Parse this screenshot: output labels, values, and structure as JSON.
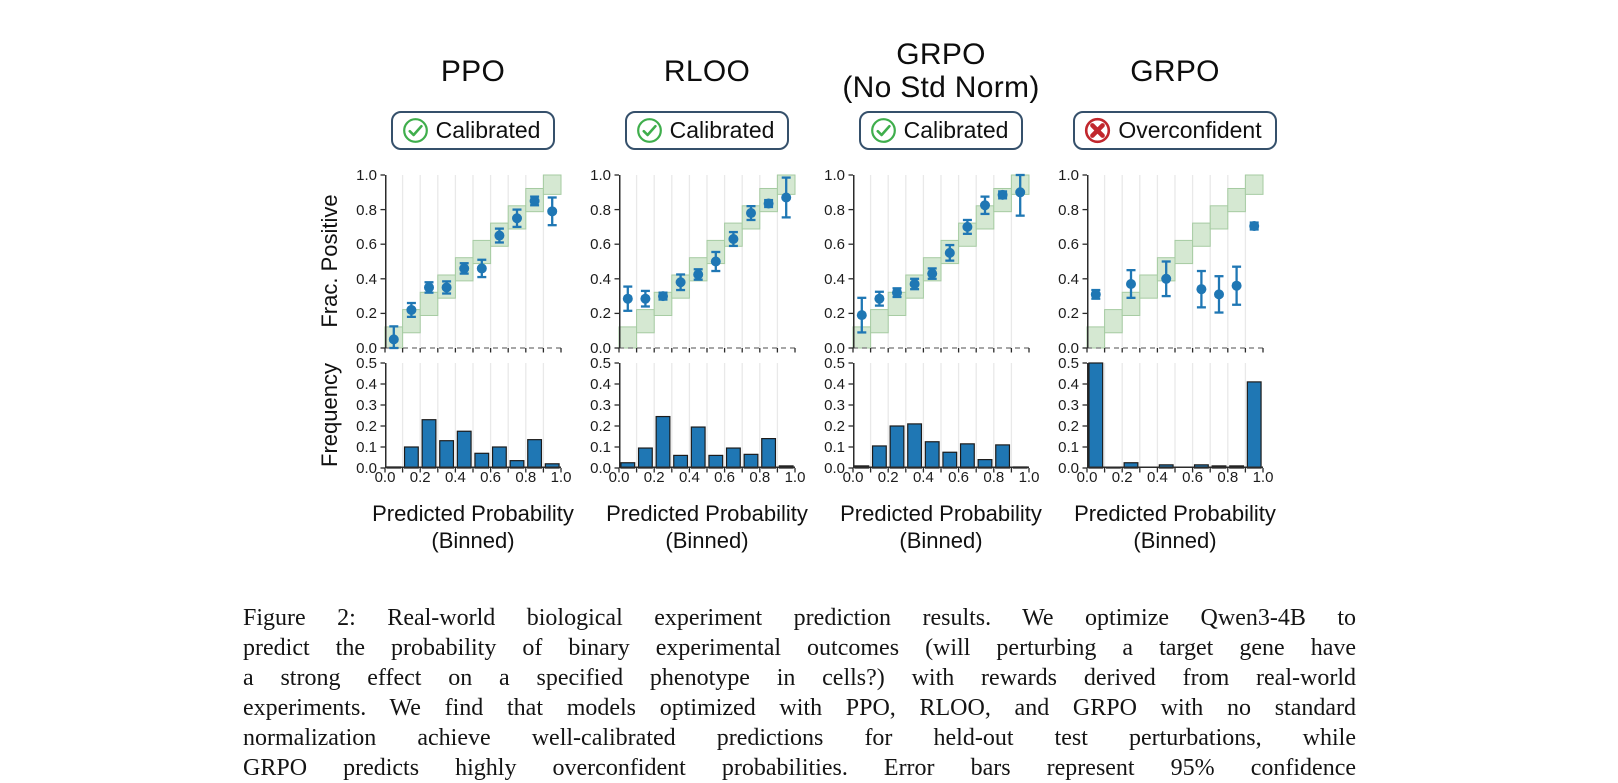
{
  "figure": {
    "panels": [
      {
        "title_lines": [
          "PPO"
        ],
        "badge": {
          "label": "Calibrated",
          "status": "calibrated"
        }
      },
      {
        "title_lines": [
          "RLOO"
        ],
        "badge": {
          "label": "Calibrated",
          "status": "calibrated"
        }
      },
      {
        "title_lines": [
          "GRPO",
          "(No Std Norm)"
        ],
        "badge": {
          "label": "Calibrated",
          "status": "calibrated"
        }
      },
      {
        "title_lines": [
          "GRPO"
        ],
        "badge": {
          "label": "Overconfident",
          "status": "overconfident"
        }
      }
    ],
    "axes": {
      "ylabel_top": "Frac. Positive",
      "ylabel_bottom": "Frequency",
      "xlabel_line1": "Predicted Probability",
      "xlabel_line2": "(Binned)",
      "cal_yticks": [
        0,
        0.2,
        0.4,
        0.6,
        0.8,
        1.0
      ],
      "hist_yticks": [
        0,
        0.1,
        0.2,
        0.3,
        0.4,
        0.5
      ],
      "xticks": [
        0,
        0.2,
        0.4,
        0.6,
        0.8,
        1.0
      ]
    },
    "colors": {
      "point_blue": "#1f77b4",
      "bar_blue": "#1f77b4",
      "bar_edge": "#1c1c1c",
      "band_fill": "#d5e8d2",
      "band_edge": "#a6cba2",
      "grid": "#e9e9e9",
      "spine": "#2b2b2b",
      "dashed_axis": "#8a8a8a",
      "badge_border": "#35506b",
      "check_green": "#3fae4c",
      "cross_red": "#c1272d",
      "text": "#111111"
    }
  },
  "chart_data": [
    {
      "type": "scatter",
      "title": "PPO calibration",
      "ylabel": "Frac. Positive",
      "xlabel": "Predicted Probability (Binned)",
      "xlim": [
        0,
        1
      ],
      "ylim": [
        0,
        1
      ],
      "band": "stepped diagonal band of ideal calibration per 0.1-wide bin",
      "x": [
        0.05,
        0.15,
        0.25,
        0.35,
        0.45,
        0.55,
        0.65,
        0.75,
        0.85,
        0.95
      ],
      "y": [
        0.05,
        0.22,
        0.35,
        0.35,
        0.46,
        0.46,
        0.65,
        0.75,
        0.85,
        0.79
      ],
      "yerr": [
        0.075,
        0.04,
        0.03,
        0.035,
        0.03,
        0.05,
        0.04,
        0.05,
        0.025,
        0.08
      ]
    },
    {
      "type": "bar",
      "title": "PPO prediction frequency",
      "ylabel": "Frequency",
      "xlabel": "Predicted Probability (Binned)",
      "ylim": [
        0,
        0.5
      ],
      "bin_edges": [
        0,
        0.1,
        0.2,
        0.3,
        0.4,
        0.5,
        0.6,
        0.7,
        0.8,
        0.9,
        1.0
      ],
      "values": [
        0.005,
        0.1,
        0.23,
        0.13,
        0.175,
        0.07,
        0.1,
        0.035,
        0.135,
        0.02
      ]
    },
    {
      "type": "scatter",
      "title": "RLOO calibration",
      "ylabel": "Frac. Positive",
      "xlabel": "Predicted Probability (Binned)",
      "xlim": [
        0,
        1
      ],
      "ylim": [
        0,
        1
      ],
      "band": "stepped diagonal band of ideal calibration per 0.1-wide bin",
      "x": [
        0.05,
        0.15,
        0.25,
        0.35,
        0.45,
        0.55,
        0.65,
        0.75,
        0.85,
        0.95
      ],
      "y": [
        0.285,
        0.285,
        0.3,
        0.38,
        0.425,
        0.5,
        0.63,
        0.78,
        0.835,
        0.87
      ],
      "yerr": [
        0.07,
        0.045,
        0.02,
        0.045,
        0.03,
        0.055,
        0.04,
        0.04,
        0.02,
        0.115
      ]
    },
    {
      "type": "bar",
      "title": "RLOO prediction frequency",
      "ylabel": "Frequency",
      "xlabel": "Predicted Probability (Binned)",
      "ylim": [
        0,
        0.5
      ],
      "bin_edges": [
        0,
        0.1,
        0.2,
        0.3,
        0.4,
        0.5,
        0.6,
        0.7,
        0.8,
        0.9,
        1.0
      ],
      "values": [
        0.025,
        0.095,
        0.245,
        0.06,
        0.195,
        0.06,
        0.095,
        0.065,
        0.14,
        0.01
      ]
    },
    {
      "type": "scatter",
      "title": "GRPO (No Std Norm) calibration",
      "ylabel": "Frac. Positive",
      "xlabel": "Predicted Probability (Binned)",
      "xlim": [
        0,
        1
      ],
      "ylim": [
        0,
        1
      ],
      "band": "stepped diagonal band of ideal calibration per 0.1-wide bin",
      "x": [
        0.05,
        0.15,
        0.25,
        0.35,
        0.45,
        0.55,
        0.65,
        0.75,
        0.85,
        0.95
      ],
      "y": [
        0.19,
        0.285,
        0.32,
        0.37,
        0.43,
        0.55,
        0.7,
        0.825,
        0.885,
        0.9
      ],
      "yerr": [
        0.1,
        0.04,
        0.025,
        0.03,
        0.03,
        0.045,
        0.04,
        0.05,
        0.02,
        0.135
      ]
    },
    {
      "type": "bar",
      "title": "GRPO (No Std Norm) prediction frequency",
      "ylabel": "Frequency",
      "xlabel": "Predicted Probability (Binned)",
      "ylim": [
        0,
        0.5
      ],
      "bin_edges": [
        0,
        0.1,
        0.2,
        0.3,
        0.4,
        0.5,
        0.6,
        0.7,
        0.8,
        0.9,
        1.0
      ],
      "values": [
        0.01,
        0.105,
        0.2,
        0.21,
        0.125,
        0.075,
        0.115,
        0.04,
        0.11,
        0.005
      ]
    },
    {
      "type": "scatter",
      "title": "GRPO calibration",
      "ylabel": "Frac. Positive",
      "xlabel": "Predicted Probability (Binned)",
      "xlim": [
        0,
        1
      ],
      "ylim": [
        0,
        1
      ],
      "band": "stepped diagonal band of ideal calibration per 0.1-wide bin",
      "x": [
        0.05,
        0.25,
        0.45,
        0.65,
        0.75,
        0.85,
        0.95
      ],
      "y": [
        0.31,
        0.37,
        0.4,
        0.34,
        0.31,
        0.36,
        0.705
      ],
      "yerr": [
        0.025,
        0.08,
        0.1,
        0.105,
        0.105,
        0.11,
        0.02
      ]
    },
    {
      "type": "bar",
      "title": "GRPO prediction frequency",
      "ylabel": "Frequency",
      "xlabel": "Predicted Probability (Binned)",
      "ylim": [
        0,
        0.5
      ],
      "bin_edges": [
        0,
        0.1,
        0.2,
        0.3,
        0.4,
        0.5,
        0.6,
        0.7,
        0.8,
        0.9,
        1.0
      ],
      "values": [
        0.5,
        0.003,
        0.025,
        0.0,
        0.015,
        0.0,
        0.015,
        0.01,
        0.01,
        0.41
      ]
    }
  ],
  "caption": {
    "lines": [
      "Figure 2: Real-world biological experiment prediction results. We optimize Qwen3-4B to",
      "predict the probability of binary experimental outcomes (will perturbing a target gene have",
      "a strong effect on a specified phenotype in cells?) with rewards derived from real-world",
      "experiments. We find that models optimized with PPO, RLOO, and GRPO with no standard",
      "normalization achieve well-calibrated predictions for held-out test perturbations, while",
      "GRPO predicts highly overconfident probabilities. Error bars represent 95% confidence"
    ]
  }
}
